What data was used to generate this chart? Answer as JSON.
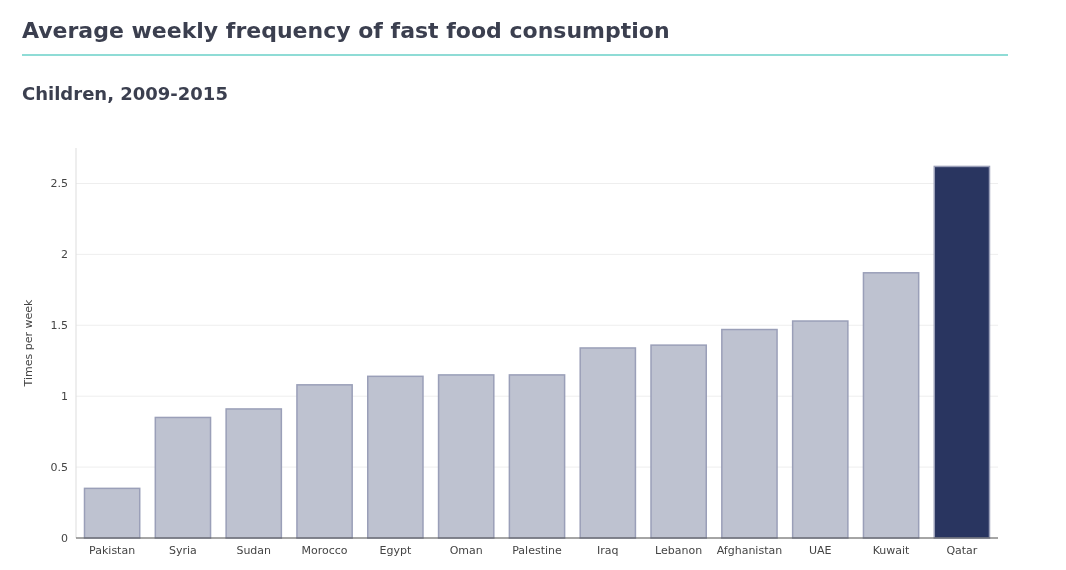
{
  "chart_data": {
    "type": "bar",
    "title": "Average weekly frequency of fast food consumption",
    "subtitle": "Children, 2009-2015",
    "ylabel": "Times per week",
    "categories": [
      "Pakistan",
      "Syria",
      "Sudan",
      "Morocco",
      "Egypt",
      "Oman",
      "Palestine",
      "Iraq",
      "Lebanon",
      "Afghanistan",
      "UAE",
      "Kuwait",
      "Qatar"
    ],
    "values": [
      0.35,
      0.85,
      0.91,
      1.08,
      1.14,
      1.15,
      1.15,
      1.34,
      1.36,
      1.47,
      1.53,
      1.87,
      2.62
    ],
    "colors": [
      "#bec2d0",
      "#bec2d0",
      "#bec2d0",
      "#bec2d0",
      "#bec2d0",
      "#bec2d0",
      "#bec2d0",
      "#bec2d0",
      "#bec2d0",
      "#bec2d0",
      "#bec2d0",
      "#bec2d0",
      "#293560"
    ],
    "ylim": [
      0,
      2.75
    ],
    "yticks": [
      0,
      0.5,
      1,
      1.5,
      2,
      2.5
    ],
    "grid": "y"
  }
}
